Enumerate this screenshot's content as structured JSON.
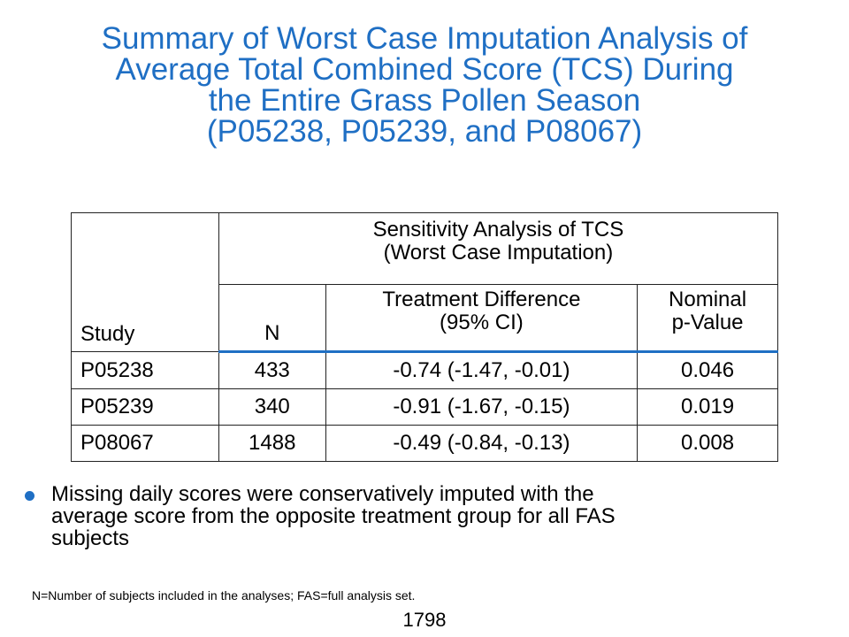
{
  "slide": {
    "title_lines": [
      "Summary of Worst Case Imputation Analysis of",
      "Average Total Combined Score (TCS) During",
      "the Entire Grass Pollen Season",
      "(P05238, P05239, and P08067)"
    ],
    "table": {
      "group_header_lines": [
        "Sensitivity Analysis of TCS",
        "(Worst Case Imputation)"
      ],
      "col_study": "Study",
      "col_n": "N",
      "col_diff_lines": [
        "Treatment Difference",
        "(95% CI)"
      ],
      "col_p_lines": [
        "Nominal",
        "p-Value"
      ],
      "rows": [
        {
          "study": "P05238",
          "n": "433",
          "diff": "-0.74 (-1.47, -0.01)",
          "p": "0.046"
        },
        {
          "study": "P05239",
          "n": "340",
          "diff": "-0.91 (-1.67, -0.15)",
          "p": "0.019"
        },
        {
          "study": "P08067",
          "n": "1488",
          "diff": "-0.49 (-0.84, -0.13)",
          "p": "0.008"
        }
      ]
    },
    "bullet_lines": [
      "Missing daily scores were conservatively imputed with the",
      "average score from the opposite treatment group for all FAS",
      "subjects"
    ],
    "footnote": "N=Number of subjects included in the analyses; FAS=full analysis set.",
    "page_number": "1798",
    "colors": {
      "accent": "#1f6fc4",
      "text": "#000000",
      "background": "#ffffff"
    }
  }
}
